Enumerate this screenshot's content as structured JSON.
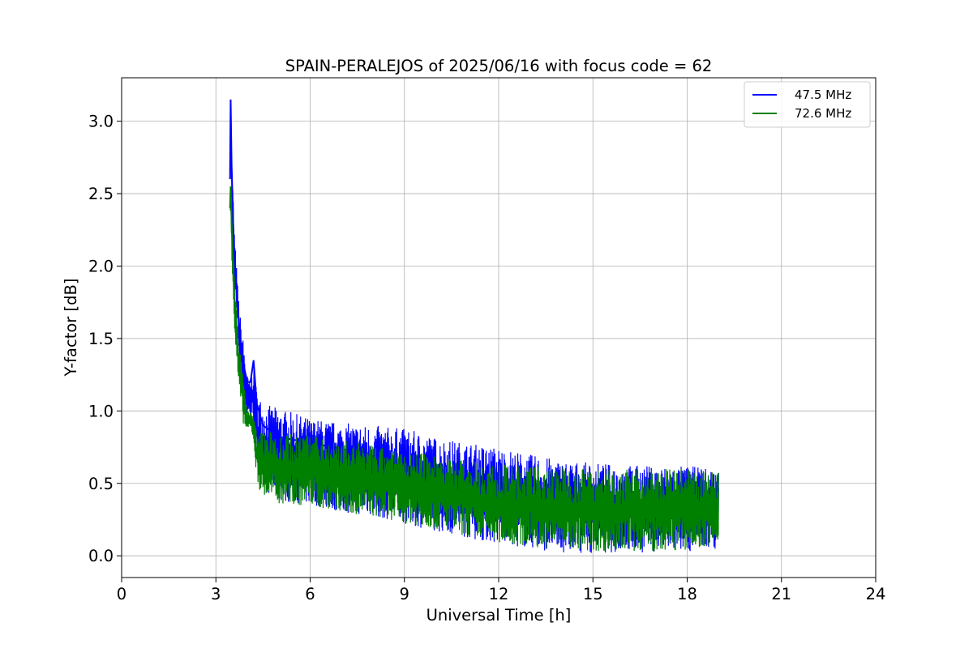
{
  "chart_data": {
    "type": "line",
    "title": "SPAIN-PERALEJOS of 2025/06/16 with focus code = 62",
    "xlabel": "Universal Time [h]",
    "ylabel": "Y-factor [dB]",
    "xlim": [
      0,
      24
    ],
    "ylim": [
      -0.15,
      3.3
    ],
    "xticks": [
      0,
      3,
      6,
      9,
      12,
      15,
      18,
      21,
      24
    ],
    "xtick_labels": [
      "0",
      "3",
      "6",
      "9",
      "12",
      "15",
      "18",
      "21",
      "24"
    ],
    "yticks": [
      0.0,
      0.5,
      1.0,
      1.5,
      2.0,
      2.5,
      3.0
    ],
    "ytick_labels": [
      "0.0",
      "0.5",
      "1.0",
      "1.5",
      "2.0",
      "2.5",
      "3.0"
    ],
    "grid": true,
    "legend_position": "top-right",
    "series": [
      {
        "name": "47.5 MHz",
        "color": "#0000ff",
        "x": [
          3.45,
          3.47,
          3.5,
          3.55,
          3.6,
          3.7,
          3.8,
          3.9,
          4.0,
          4.1,
          4.2,
          4.3,
          4.5,
          5.0,
          6.0,
          7.0,
          8.0,
          9.0,
          10.0,
          11.0,
          12.0,
          13.0,
          14.0,
          15.0,
          16.0,
          17.0,
          18.0,
          19.0
        ],
        "y": [
          2.6,
          3.15,
          2.7,
          2.3,
          2.0,
          1.7,
          1.45,
          1.3,
          1.2,
          1.2,
          1.35,
          1.05,
          0.9,
          0.82,
          0.78,
          0.74,
          0.68,
          0.62,
          0.58,
          0.52,
          0.47,
          0.43,
          0.4,
          0.37,
          0.36,
          0.35,
          0.34,
          0.32
        ],
        "band_min": [
          2.5,
          2.9,
          2.4,
          2.1,
          1.8,
          1.5,
          1.2,
          1.0,
          0.95,
          0.95,
          0.9,
          0.6,
          0.45,
          0.38,
          0.35,
          0.3,
          0.27,
          0.22,
          0.17,
          0.12,
          0.08,
          0.05,
          0.02,
          0.02,
          0.02,
          0.02,
          0.03,
          0.05
        ],
        "band_max": [
          2.7,
          3.15,
          2.8,
          2.5,
          2.2,
          1.85,
          1.6,
          1.45,
          1.25,
          1.2,
          1.35,
          1.15,
          1.05,
          1.02,
          0.95,
          0.92,
          0.9,
          0.88,
          0.82,
          0.78,
          0.75,
          0.7,
          0.66,
          0.64,
          0.63,
          0.62,
          0.62,
          0.6
        ]
      },
      {
        "name": "72.6 MHz",
        "color": "#008000",
        "x": [
          3.45,
          3.47,
          3.5,
          3.55,
          3.6,
          3.7,
          3.8,
          3.9,
          4.0,
          4.1,
          4.2,
          4.3,
          4.5,
          5.0,
          6.0,
          7.0,
          8.0,
          9.0,
          10.0,
          11.0,
          12.0,
          13.0,
          14.0,
          15.0,
          16.0,
          17.0,
          18.0,
          19.0
        ],
        "y": [
          2.4,
          2.55,
          2.3,
          2.0,
          1.7,
          1.4,
          1.2,
          1.05,
          0.95,
          0.95,
          0.9,
          0.7,
          0.62,
          0.6,
          0.58,
          0.55,
          0.5,
          0.46,
          0.43,
          0.4,
          0.36,
          0.33,
          0.31,
          0.3,
          0.29,
          0.29,
          0.28,
          0.28
        ],
        "band_min": [
          2.3,
          2.4,
          2.1,
          1.8,
          1.5,
          1.2,
          1.0,
          0.88,
          0.85,
          0.88,
          0.8,
          0.5,
          0.4,
          0.36,
          0.34,
          0.3,
          0.27,
          0.23,
          0.18,
          0.13,
          0.09,
          0.06,
          0.04,
          0.03,
          0.03,
          0.03,
          0.04,
          0.05
        ],
        "band_max": [
          2.45,
          2.58,
          2.4,
          2.2,
          1.9,
          1.6,
          1.35,
          1.2,
          1.0,
          1.0,
          0.95,
          0.9,
          0.86,
          0.86,
          0.84,
          0.8,
          0.76,
          0.72,
          0.7,
          0.66,
          0.63,
          0.62,
          0.62,
          0.6,
          0.6,
          0.6,
          0.6,
          0.58
        ]
      }
    ]
  }
}
